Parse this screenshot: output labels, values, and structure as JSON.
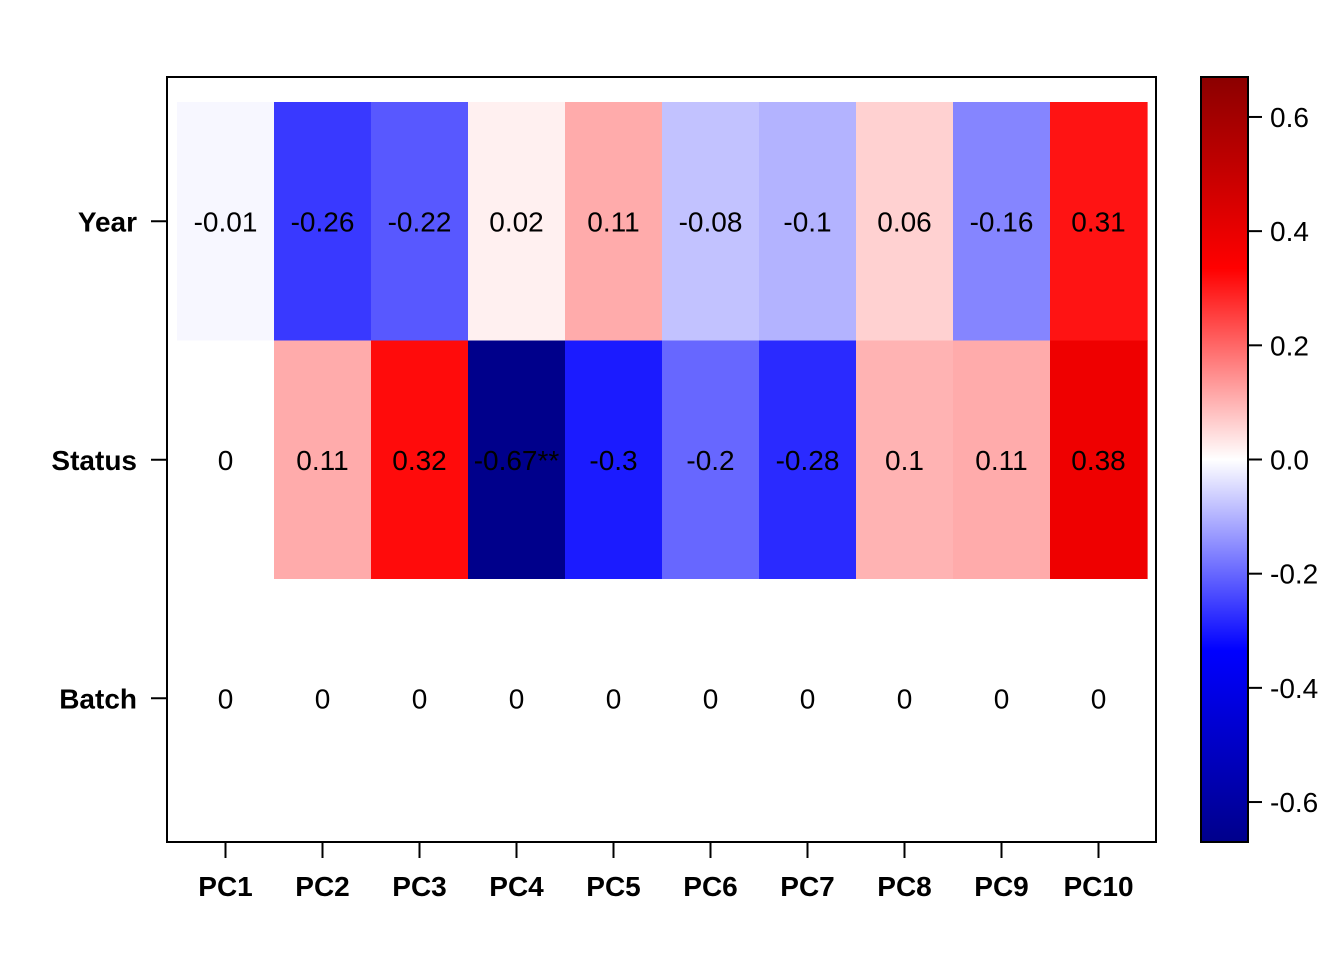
{
  "chart_data": {
    "type": "heatmap",
    "title": "",
    "xlabel": "",
    "ylabel": "",
    "x_categories": [
      "PC1",
      "PC2",
      "PC3",
      "PC4",
      "PC5",
      "PC6",
      "PC7",
      "PC8",
      "PC9",
      "PC10"
    ],
    "y_categories": [
      "Year",
      "Status",
      "Batch"
    ],
    "values": [
      [
        -0.01,
        -0.26,
        -0.22,
        0.02,
        0.11,
        -0.08,
        -0.1,
        0.06,
        -0.16,
        0.31
      ],
      [
        0,
        0.11,
        0.32,
        -0.67,
        -0.3,
        -0.2,
        -0.28,
        0.1,
        0.11,
        0.38
      ],
      [
        0,
        0,
        0,
        0,
        0,
        0,
        0,
        0,
        0,
        0
      ]
    ],
    "cell_labels": [
      [
        "-0.01",
        "-0.26",
        "-0.22",
        "0.02",
        "0.11",
        "-0.08",
        "-0.1",
        "0.06",
        "-0.16",
        "0.31"
      ],
      [
        "0",
        "0.11",
        "0.32",
        "-0.67**",
        "-0.3",
        "-0.2",
        "-0.28",
        "0.1",
        "0.11",
        "0.38"
      ],
      [
        "0",
        "0",
        "0",
        "0",
        "0",
        "0",
        "0",
        "0",
        "0",
        "0"
      ]
    ],
    "colorbar": {
      "range": [
        -0.67,
        0.67
      ],
      "ticks": [
        0.6,
        0.4,
        0.2,
        0.0,
        -0.2,
        -0.4,
        -0.6
      ],
      "tick_labels": [
        "0.6",
        "0.4",
        "0.2",
        "0.0",
        "-0.2",
        "-0.4",
        "-0.6"
      ],
      "colors": {
        "low": "#00008B",
        "mid_low": "#0000FF",
        "center": "#FFFFFF",
        "mid_high": "#FF0000",
        "high": "#8B0000"
      }
    }
  }
}
